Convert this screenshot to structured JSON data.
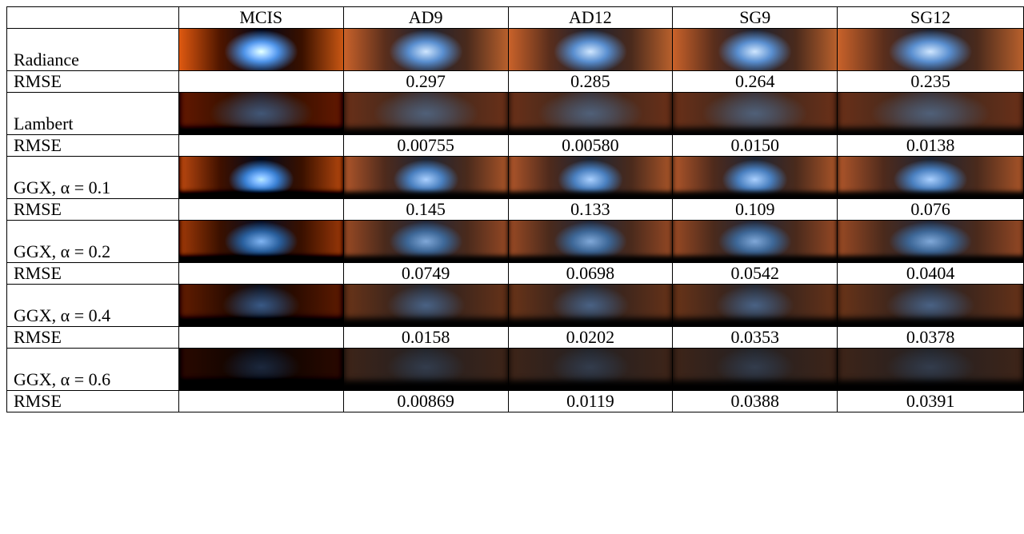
{
  "table": {
    "columns": [
      "MCIS",
      "AD9",
      "AD12",
      "SG9",
      "SG12"
    ],
    "rows": [
      {
        "label": "Radiance",
        "metric": "RMSE",
        "values": [
          "0.297",
          "0.285",
          "0.264",
          "0.235"
        ]
      },
      {
        "label": "Lambert",
        "metric": "RMSE",
        "values": [
          "0.00755",
          "0.00580",
          "0.0150",
          "0.0138"
        ]
      },
      {
        "label": "GGX, α = 0.1",
        "metric": "RMSE",
        "values": [
          "0.145",
          "0.133",
          "0.109",
          "0.076"
        ]
      },
      {
        "label": "GGX, α = 0.2",
        "metric": "RMSE",
        "values": [
          "0.0749",
          "0.0698",
          "0.0542",
          "0.0404"
        ]
      },
      {
        "label": "GGX, α = 0.4",
        "metric": "RMSE",
        "values": [
          "0.0158",
          "0.0202",
          "0.0353",
          "0.0378"
        ]
      },
      {
        "label": "GGX, α = 0.6",
        "metric": "RMSE",
        "values": [
          "0.00869",
          "0.0119",
          "0.0388",
          "0.0391"
        ]
      }
    ]
  }
}
